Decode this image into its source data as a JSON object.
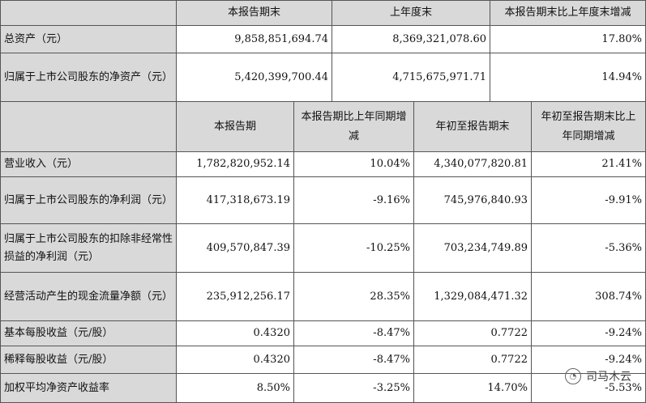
{
  "section1": {
    "headers": [
      "",
      "本报告期末",
      "上年度末",
      "本报告期末比上年度末增减"
    ],
    "rows": [
      {
        "label": "总资产（元）",
        "current": "9,858,851,694.74",
        "prior": "8,369,321,078.60",
        "change": "17.80%"
      },
      {
        "label": "归属于上市公司股东的净资产（元）",
        "current": "5,420,399,700.44",
        "prior": "4,715,675,971.71",
        "change": "14.94%"
      }
    ]
  },
  "section2": {
    "headers": [
      "",
      "本报告期",
      "本报告期比上年同期增减",
      "年初至报告期末",
      "年初至报告期末比上年同期增减"
    ],
    "rows": [
      {
        "label": "营业收入（元）",
        "period": "1,782,820,952.14",
        "period_change": "10.04%",
        "ytd": "4,340,077,820.81",
        "ytd_change": "21.41%"
      },
      {
        "label": "归属于上市公司股东的净利润（元）",
        "period": "417,318,673.19",
        "period_change": "-9.16%",
        "ytd": "745,976,840.93",
        "ytd_change": "-9.91%"
      },
      {
        "label": "归属于上市公司股东的扣除非经常性损益的净利润（元）",
        "period": "409,570,847.39",
        "period_change": "-10.25%",
        "ytd": "703,234,749.89",
        "ytd_change": "-5.36%"
      },
      {
        "label": "经营活动产生的现金流量净额（元）",
        "period": "235,912,256.17",
        "period_change": "28.35%",
        "ytd": "1,329,084,471.32",
        "ytd_change": "308.74%"
      },
      {
        "label": "基本每股收益（元/股）",
        "period": "0.4320",
        "period_change": "-8.47%",
        "ytd": "0.7722",
        "ytd_change": "-9.24%"
      },
      {
        "label": "稀释每股收益（元/股）",
        "period": "0.4320",
        "period_change": "-8.47%",
        "ytd": "0.7722",
        "ytd_change": "-9.24%"
      },
      {
        "label": "加权平均净资产收益率",
        "period": "8.50%",
        "period_change": "-3.25%",
        "ytd": "14.70%",
        "ytd_change": "-5.53%"
      }
    ]
  },
  "watermark": {
    "text": "司马木云"
  }
}
